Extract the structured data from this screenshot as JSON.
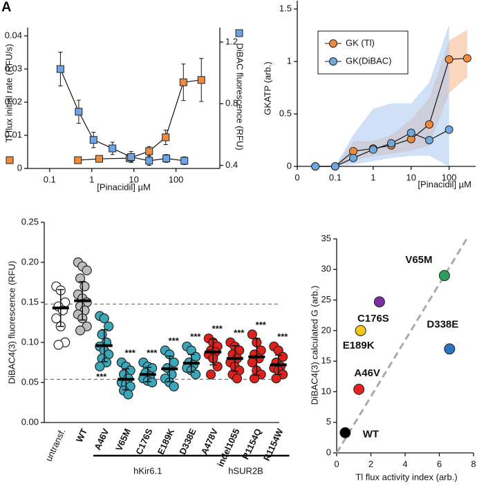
{
  "chart_data": [
    {
      "type": "line",
      "panel_label": "A",
      "xlabel": "[Pinacidil] µM",
      "ylabel": "Tl flux initial rate (RFU/s)",
      "y2label": "DiBAC fluorescence (RFU)",
      "xscale": "log",
      "xlim": [
        0.03,
        1100
      ],
      "xticks": [
        0.1,
        1,
        10,
        100
      ],
      "ylim": [
        0,
        0.04
      ],
      "yticks": [
        0,
        0.01,
        0.02,
        0.03,
        0.04
      ],
      "y2lim": [
        0.38,
        1.24
      ],
      "y2ticks": [
        0.4,
        0.8,
        1.2
      ],
      "series": [
        {
          "color": "#f08a3c",
          "marker": "square",
          "x": [
            0.47,
            1.5,
            7.9,
            23,
            57,
            150,
            400
          ],
          "values": [
            0.0025,
            0.0029,
            0.0031,
            0.0052,
            0.0094,
            0.026,
            0.0267
          ],
          "errors": [
            0.0008,
            0.0008,
            0.001,
            0.0014,
            0.0022,
            0.0055,
            0.0065
          ]
        },
        {
          "color": "#6fa3e8",
          "marker": "square",
          "axis": "y2",
          "x": [
            0.18,
            0.49,
            1.1,
            3.1,
            8.6,
            23,
            59,
            158
          ],
          "values": [
            1.025,
            0.748,
            0.565,
            0.51,
            0.454,
            0.43,
            0.445,
            0.43
          ],
          "errors": [
            0.11,
            0.075,
            0.05,
            0.04,
            0.035,
            0.03,
            0.025,
            0.025
          ]
        }
      ]
    },
    {
      "type": "line",
      "xlabel": "[Pinacidil] µM",
      "ylabel": "GKATP (arb.)",
      "xscale": "log",
      "xlim": [
        0.01,
        500
      ],
      "xticks": [
        {
          "value": 0.01,
          "label": "0"
        },
        0.1,
        1,
        10,
        100
      ],
      "ylim": [
        0,
        1.5
      ],
      "yticks": [
        0,
        0.5,
        1,
        1.5
      ],
      "legend": "top-left",
      "series": [
        {
          "name": "GK (Tl)",
          "color": "#f08a3c",
          "band_color": "#f6b48a",
          "marker": "circle",
          "x": [
            0.03,
            0.1,
            0.3,
            1,
            3,
            10,
            30,
            100,
            300
          ],
          "values": [
            0,
            0,
            0.145,
            0.17,
            0.2,
            0.26,
            0.4,
            1.02,
            1.03
          ],
          "lower": [
            0,
            0,
            0.05,
            0.1,
            0.12,
            0.15,
            0.2,
            0.7,
            0.85
          ],
          "upper": [
            0,
            0,
            0.24,
            0.24,
            0.3,
            0.45,
            0.65,
            1.2,
            1.3
          ]
        },
        {
          "name": "GK(DiBAC)",
          "color": "#6fa8dc",
          "band_color": "#a9c8f0",
          "marker": "circle",
          "x": [
            0.03,
            0.1,
            0.3,
            1,
            3,
            10,
            30,
            100
          ],
          "values": [
            0,
            0,
            0.08,
            0.16,
            0.22,
            0.32,
            0.25,
            0.35
          ],
          "lower": [
            0,
            0,
            0.02,
            0.05,
            0.08,
            0.1,
            0.1,
            0
          ],
          "upper": [
            0,
            0,
            0.3,
            0.55,
            0.6,
            0.6,
            0.8,
            1.35
          ]
        }
      ]
    },
    {
      "type": "strip",
      "ylabel": "DiBAC4(3) fluorescence (RFU)",
      "ylim": [
        0,
        0.25
      ],
      "yticks": [
        {
          "value": 0,
          "label": "0.00"
        },
        {
          "value": 0.05,
          "label": "0.05"
        },
        {
          "value": 0.1,
          "label": "0.10"
        },
        {
          "value": 0.15,
          "label": "0.15"
        },
        {
          "value": 0.2,
          "label": "0.20"
        },
        {
          "value": 0.25,
          "label": "0.25"
        }
      ],
      "reference_lines": [
        0.148,
        0.054
      ],
      "groups": [
        {
          "category": "untransf.",
          "color": "#ffffff",
          "values": [
            0.17,
            0.165,
            0.15,
            0.145,
            0.14,
            0.13,
            0.12,
            0.1,
            0.097
          ],
          "mean": 0.143,
          "sd": 0.023
        },
        {
          "category": "WT",
          "color": "#bdbdbd",
          "values": [
            0.2,
            0.195,
            0.19,
            0.18,
            0.17,
            0.16,
            0.155,
            0.15,
            0.145,
            0.14,
            0.135,
            0.13,
            0.12,
            0.115
          ],
          "mean": 0.152,
          "sd": 0.024
        },
        {
          "category": "A46V",
          "color": "#3aa6b9",
          "values": [
            0.133,
            0.13,
            0.12,
            0.11,
            0.1,
            0.095,
            0.09,
            0.085,
            0.08,
            0.075,
            0.07
          ],
          "mean": 0.096,
          "sd": 0.02,
          "stars": "***",
          "stars_position": "below"
        },
        {
          "category": "V65M",
          "color": "#3aa6b9",
          "values": [
            0.075,
            0.07,
            0.065,
            0.06,
            0.055,
            0.05,
            0.048,
            0.045,
            0.04,
            0.035
          ],
          "mean": 0.054,
          "sd": 0.013,
          "stars": "***"
        },
        {
          "category": "C176S",
          "color": "#3aa6b9",
          "values": [
            0.075,
            0.07,
            0.068,
            0.062,
            0.058,
            0.055,
            0.052,
            0.05
          ],
          "mean": 0.06,
          "sd": 0.009,
          "stars": "***"
        },
        {
          "category": "E189K",
          "color": "#3aa6b9",
          "values": [
            0.09,
            0.085,
            0.075,
            0.068,
            0.06,
            0.055,
            0.05,
            0.045
          ],
          "mean": 0.067,
          "sd": 0.016,
          "stars": "***"
        },
        {
          "category": "D338E",
          "color": "#3aa6b9",
          "values": [
            0.095,
            0.09,
            0.082,
            0.075,
            0.072,
            0.068,
            0.065,
            0.06
          ],
          "mean": 0.074,
          "sd": 0.011,
          "stars": "***"
        },
        {
          "category": "A478V",
          "color": "#e0201b",
          "values": [
            0.105,
            0.1,
            0.095,
            0.09,
            0.088,
            0.085,
            0.08,
            0.07,
            0.06
          ],
          "mean": 0.088,
          "sd": 0.016,
          "stars": "***"
        },
        {
          "category": "indel1055",
          "color": "#e0201b",
          "values": [
            0.1,
            0.095,
            0.09,
            0.085,
            0.08,
            0.075,
            0.07,
            0.065,
            0.06,
            0.055
          ],
          "mean": 0.08,
          "sd": 0.016,
          "stars": "***"
        },
        {
          "category": "R1154Q",
          "color": "#e0201b",
          "values": [
            0.11,
            0.1,
            0.09,
            0.085,
            0.08,
            0.075,
            0.065,
            0.06,
            0.055
          ],
          "mean": 0.082,
          "sd": 0.023,
          "stars": "***"
        },
        {
          "category": "R1154W",
          "color": "#e0201b",
          "values": [
            0.095,
            0.09,
            0.082,
            0.075,
            0.07,
            0.068,
            0.065,
            0.06,
            0.055
          ],
          "mean": 0.072,
          "sd": 0.012,
          "stars": "***"
        }
      ],
      "brackets": [
        {
          "label": "hKir6.1",
          "from": 2,
          "to": 6
        },
        {
          "label": "hSUR2B",
          "from": 7,
          "to": 10
        }
      ]
    },
    {
      "type": "scatter",
      "xlabel": "Tl flux activity index (arb.)",
      "ylabel": "DiBAC4(3) calculated G  (arb.)",
      "xlim": [
        0,
        8
      ],
      "xticks": [
        0,
        2,
        4,
        6,
        8
      ],
      "ylim": [
        0,
        35
      ],
      "yticks": [
        0,
        5,
        10,
        15,
        20,
        25,
        30,
        35
      ],
      "labels": [
        "WT",
        "A46V",
        "E189K",
        "C176S",
        "V65M",
        "D338E"
      ],
      "x": [
        0.5,
        1.3,
        1.4,
        2.5,
        6.3,
        6.6
      ],
      "values": [
        3.3,
        10.4,
        20,
        24.7,
        29,
        17
      ],
      "colors": [
        "#000000",
        "#e5231e",
        "#f5c518",
        "#7b2d9b",
        "#2e9e5b",
        "#2a75bb"
      ],
      "fit_line": {
        "x": [
          0,
          7.6
        ],
        "y": [
          0,
          35
        ],
        "color": "#aaaaaa"
      }
    }
  ]
}
